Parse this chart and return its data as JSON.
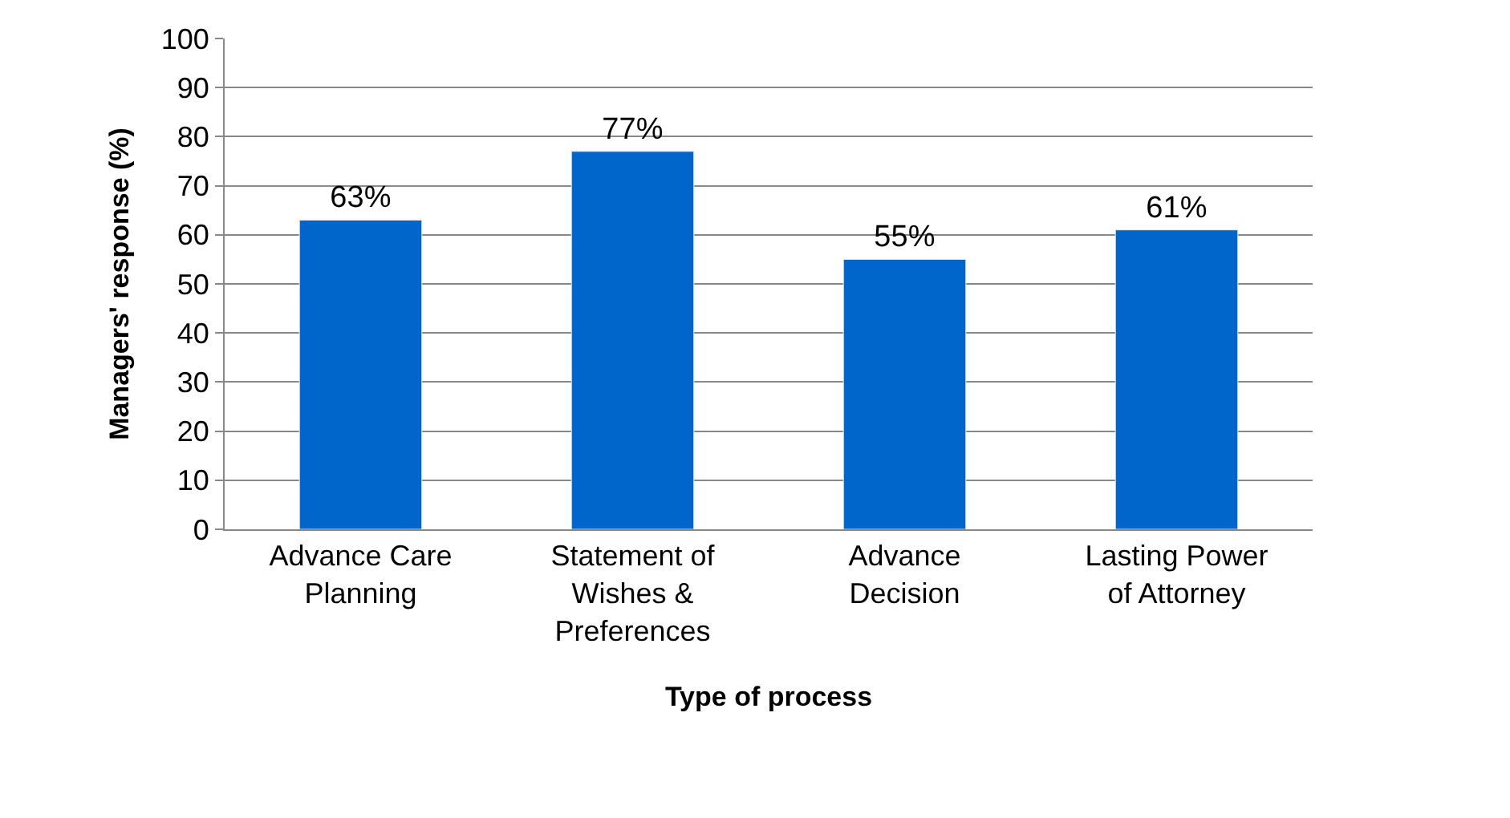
{
  "chart_data": {
    "type": "bar",
    "xlabel": "Type of process",
    "ylabel": "Managers' response (%)",
    "categories": [
      "Advance Care Planning",
      "Statement of Wishes & Preferences",
      "Advance Decision",
      "Lasting Power of Attorney"
    ],
    "values": [
      63,
      77,
      55,
      61
    ],
    "value_labels": [
      "63%",
      "77%",
      "55%",
      "61%"
    ],
    "color": "#0066cc",
    "ylim": [
      0,
      100
    ],
    "yticks": [
      0,
      10,
      20,
      30,
      40,
      50,
      60,
      70,
      80,
      90,
      100
    ],
    "grid": "y",
    "legend": false
  }
}
